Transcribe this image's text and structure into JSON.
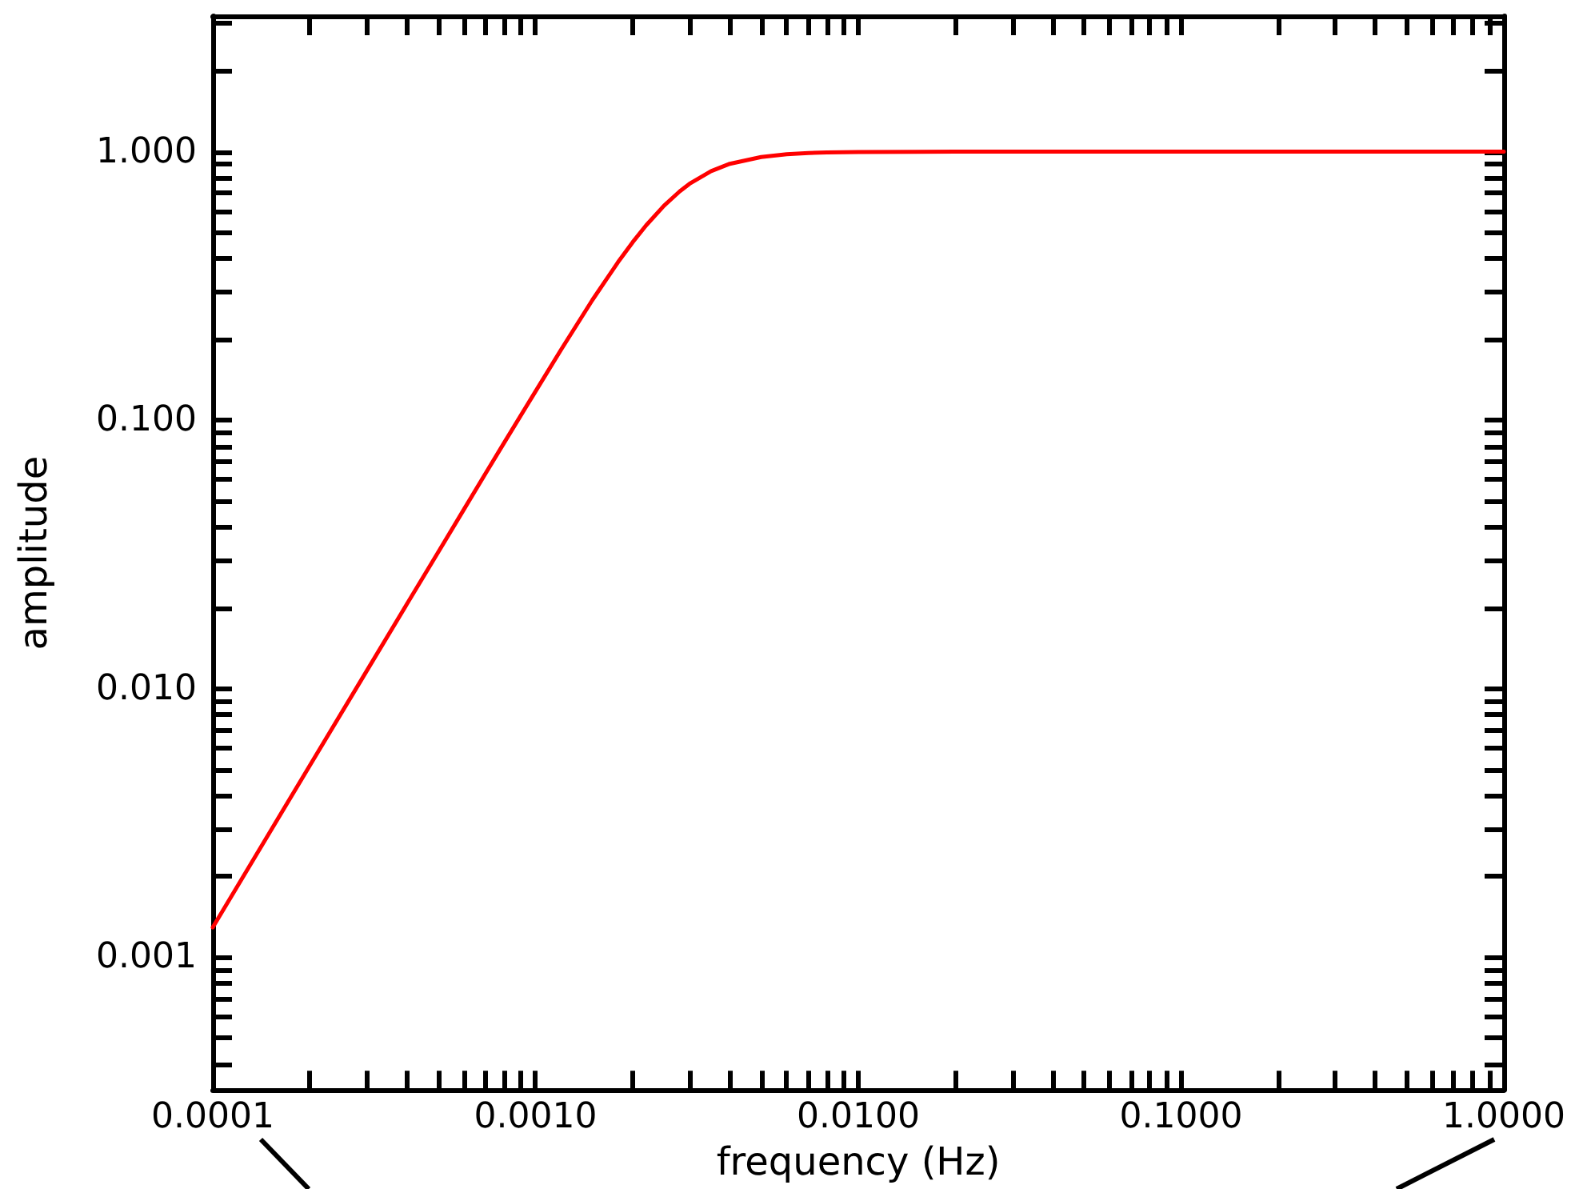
{
  "chart_data": {
    "type": "line",
    "xlabel": "frequency (Hz)",
    "ylabel": "amplitude",
    "log": "xy",
    "grid": false,
    "marker": "none",
    "line_style": "solid",
    "xlim": [
      0.0001,
      1
    ],
    "ylim": [
      0.00032,
      3.2
    ],
    "xticks": [
      {
        "value": 0.0001,
        "label": "0.0001"
      },
      {
        "value": 0.001,
        "label": "0.0010"
      },
      {
        "value": 0.01,
        "label": "0.0100"
      },
      {
        "value": 0.1,
        "label": "0.1000"
      },
      {
        "value": 1,
        "label": "1.0000"
      }
    ],
    "yticks": [
      {
        "value": 0.001,
        "label": "0.001"
      },
      {
        "value": 0.01,
        "label": "0.010"
      },
      {
        "value": 0.1,
        "label": "0.100"
      },
      {
        "value": 1,
        "label": "1.000"
      }
    ],
    "series": [
      {
        "color": "#ff0000",
        "x": [
          0.0001,
          0.00015,
          0.0002,
          0.0003,
          0.0004,
          0.0005,
          0.0006,
          0.0007,
          0.0008,
          0.001,
          0.0012,
          0.0015,
          0.0018,
          0.002,
          0.0022,
          0.0025,
          0.0028,
          0.003,
          0.0035,
          0.004,
          0.005,
          0.006,
          0.007,
          0.008,
          0.01,
          0.015,
          0.02,
          0.05,
          0.1,
          0.3,
          1
        ],
        "values": [
          0.00129,
          0.00291,
          0.00518,
          0.01165,
          0.0207,
          0.0323,
          0.0465,
          0.0633,
          0.0825,
          0.128,
          0.183,
          0.28,
          0.387,
          0.46,
          0.531,
          0.629,
          0.712,
          0.759,
          0.846,
          0.901,
          0.955,
          0.978,
          0.988,
          0.993,
          0.997,
          0.999,
          1.0,
          1.0,
          1.0,
          1.0,
          1.0
        ]
      }
    ]
  }
}
